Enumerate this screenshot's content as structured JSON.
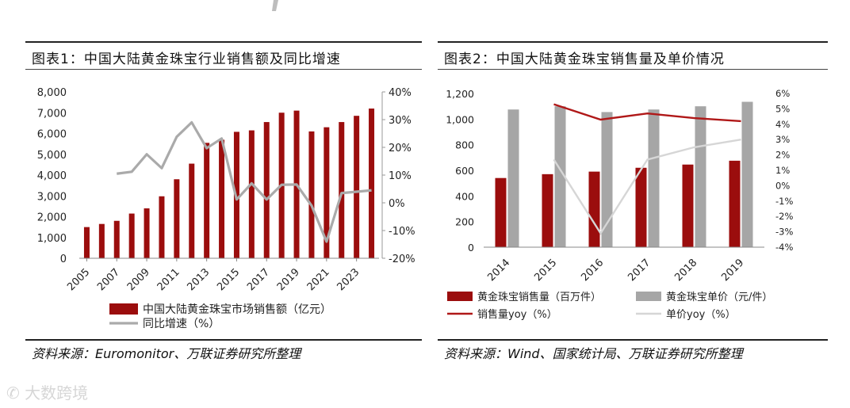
{
  "panels": [
    {
      "title": "图表1：中国大陆黄金珠宝行业销售额及同比增速",
      "source": "资料来源：Euromonitor、万联证券研究所整理"
    },
    {
      "title": "图表2：中国大陆黄金珠宝销售量及单价情况",
      "source": "资料来源：Wind、国家统计局、万联证券研究所整理"
    }
  ],
  "watermark": "大数跨境",
  "colors": {
    "dark_red": "#9b0d0d",
    "gray": "#a6a6a6",
    "line_red": "#b01818",
    "light_gray": "#d6d6d6",
    "rule": "#222222"
  },
  "chart_data": [
    {
      "type": "bar",
      "x": [
        2005,
        2006,
        2007,
        2008,
        2009,
        2010,
        2011,
        2012,
        2013,
        2014,
        2015,
        2016,
        2017,
        2018,
        2019,
        2020,
        2021,
        2022,
        2023,
        2024
      ],
      "x_tick_labels": [
        "2005",
        "2007",
        "2009",
        "2011",
        "2013",
        "2015",
        "2017",
        "2019",
        "2021",
        "2023"
      ],
      "series": [
        {
          "name": "中国大陆黄金珠宝市场销售额（亿元）",
          "type": "bar",
          "axis": "left",
          "values": [
            1500,
            1650,
            1800,
            2150,
            2400,
            2980,
            3800,
            4550,
            5550,
            5700,
            6080,
            6150,
            6550,
            7000,
            7100,
            6100,
            6300,
            6550,
            6850,
            7200
          ]
        },
        {
          "name": "同比增速（%）",
          "type": "line",
          "axis": "right",
          "values": [
            null,
            null,
            10.5,
            11.2,
            17.5,
            12.5,
            23.8,
            29.0,
            19.7,
            23.2,
            1.2,
            7.0,
            1.2,
            6.5,
            6.6,
            -1.0,
            -14.0,
            3.5,
            4.0,
            4.5
          ]
        }
      ],
      "left_axis": {
        "ticks": [
          "8,000",
          "7,000",
          "6,000",
          "5,000",
          "4,000",
          "3,000",
          "2,000",
          "1,000",
          "0"
        ],
        "ylim": [
          0,
          8000
        ]
      },
      "right_axis": {
        "ticks": [
          "40%",
          "30%",
          "20%",
          "10%",
          "0%",
          "-10%",
          "-20%"
        ],
        "ylim": [
          -20,
          40
        ]
      },
      "legend_placement": "bottom"
    },
    {
      "type": "bar",
      "x": [
        2014,
        2015,
        2016,
        2017,
        2018,
        2019
      ],
      "x_tick_labels": [
        "2014",
        "2015",
        "2016",
        "2017",
        "2018",
        "2019"
      ],
      "series": [
        {
          "name": "黄金珠宝销售量（百万件）",
          "type": "bar",
          "axis": "left",
          "values": [
            540,
            570,
            590,
            620,
            645,
            675
          ]
        },
        {
          "name": "黄金珠宝单价（元/件）",
          "type": "bar",
          "axis": "left",
          "values": [
            1075,
            1100,
            1055,
            1075,
            1100,
            1135
          ]
        },
        {
          "name": "销售量yoy（%）",
          "type": "line",
          "axis": "right",
          "values": [
            null,
            5.3,
            4.3,
            4.7,
            4.4,
            4.2
          ]
        },
        {
          "name": "单价yoy（%）",
          "type": "line",
          "axis": "right",
          "values": [
            null,
            1.7,
            -3.1,
            1.7,
            2.5,
            3.0
          ]
        }
      ],
      "left_axis": {
        "ticks": [
          "1,200",
          "1,000",
          "800",
          "600",
          "400",
          "200",
          "0"
        ],
        "ylim": [
          0,
          1200
        ]
      },
      "right_axis": {
        "ticks": [
          "6%",
          "5%",
          "4%",
          "3%",
          "2%",
          "1%",
          "0%",
          "-1%",
          "-2%",
          "-3%",
          "-4%"
        ],
        "ylim": [
          -4,
          6
        ]
      },
      "legend_placement": "bottom"
    }
  ]
}
